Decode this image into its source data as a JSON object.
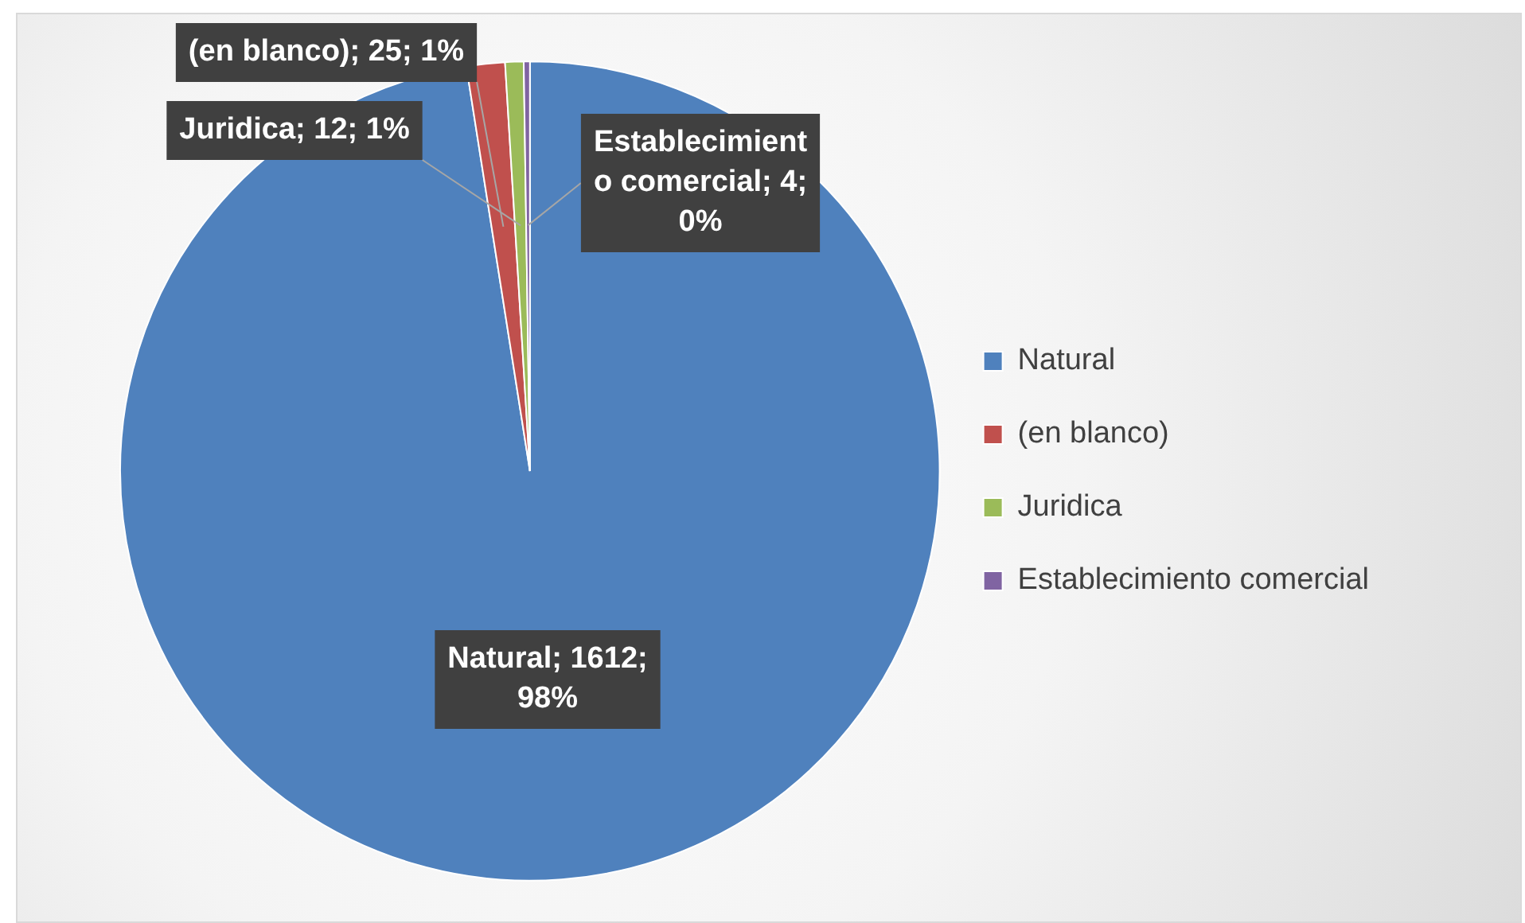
{
  "chart_data": {
    "type": "pie",
    "categories": [
      "Natural",
      "(en blanco)",
      "Juridica",
      "Establecimiento comercial"
    ],
    "values": [
      1612,
      25,
      12,
      4
    ],
    "colors": [
      "#4f81bd",
      "#c0504d",
      "#9bbb59",
      "#8064a2"
    ],
    "value_labels": [
      "Natural; 1612; 98%",
      "(en blanco); 25; 1%",
      "Juridica; 12; 1%",
      "Establecimiento comercial; 4; 0%"
    ],
    "legend": "right"
  }
}
